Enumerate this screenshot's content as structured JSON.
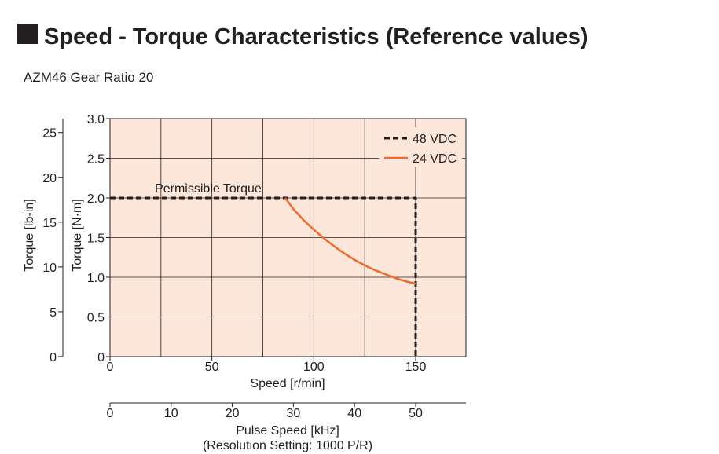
{
  "header": {
    "title": "Speed - Torque Characteristics (Reference values)",
    "subtitle": "AZM46  Gear Ratio 20"
  },
  "chart_data": {
    "type": "line",
    "xlabel": "Speed [r/min]",
    "xlim": [
      0,
      175
    ],
    "x_ticks": [
      0,
      50,
      100,
      150
    ],
    "x_tick_labels": [
      "0",
      "50",
      "100",
      "150"
    ],
    "ylabel": "Torque [N·m]",
    "ylim": [
      0,
      3.0
    ],
    "y_ticks": [
      0,
      0.5,
      1.0,
      1.5,
      2.0,
      2.5,
      3.0
    ],
    "y_tick_labels": [
      "0",
      "0.5",
      "1.0",
      "1.5",
      "2.0",
      "2.5",
      "3.0"
    ],
    "y2_label": "Torque [lb-in]",
    "y2_ticks": [
      0,
      5,
      10,
      15,
      20,
      25
    ],
    "y2_tick_labels": [
      "0",
      "5",
      "10",
      "15",
      "20",
      "25"
    ],
    "x2_label_line1": "Pulse Speed [kHz]",
    "x2_label_line2": "(Resolution Setting: 1000 P/R)",
    "x2_ticks": [
      0,
      10,
      20,
      30,
      40,
      50
    ],
    "x2_tick_labels": [
      "0",
      "10",
      "20",
      "30",
      "40",
      "50"
    ],
    "grid": true,
    "plot_background": "#fde6da",
    "legend_position": "top-right",
    "annotation": "Permissible Torque",
    "series": [
      {
        "name": "48 VDC",
        "color": "#231f20",
        "style": "dashed",
        "x": [
          0,
          150,
          150
        ],
        "y": [
          2.0,
          2.0,
          0
        ]
      },
      {
        "name": "24 VDC",
        "color": "#ee6b2d",
        "style": "solid",
        "x": [
          86,
          90,
          95,
          100,
          105,
          110,
          115,
          120,
          125,
          130,
          135,
          140,
          145,
          150
        ],
        "y": [
          2.0,
          1.86,
          1.72,
          1.6,
          1.49,
          1.39,
          1.3,
          1.22,
          1.15,
          1.09,
          1.04,
          0.99,
          0.95,
          0.92
        ]
      }
    ]
  }
}
